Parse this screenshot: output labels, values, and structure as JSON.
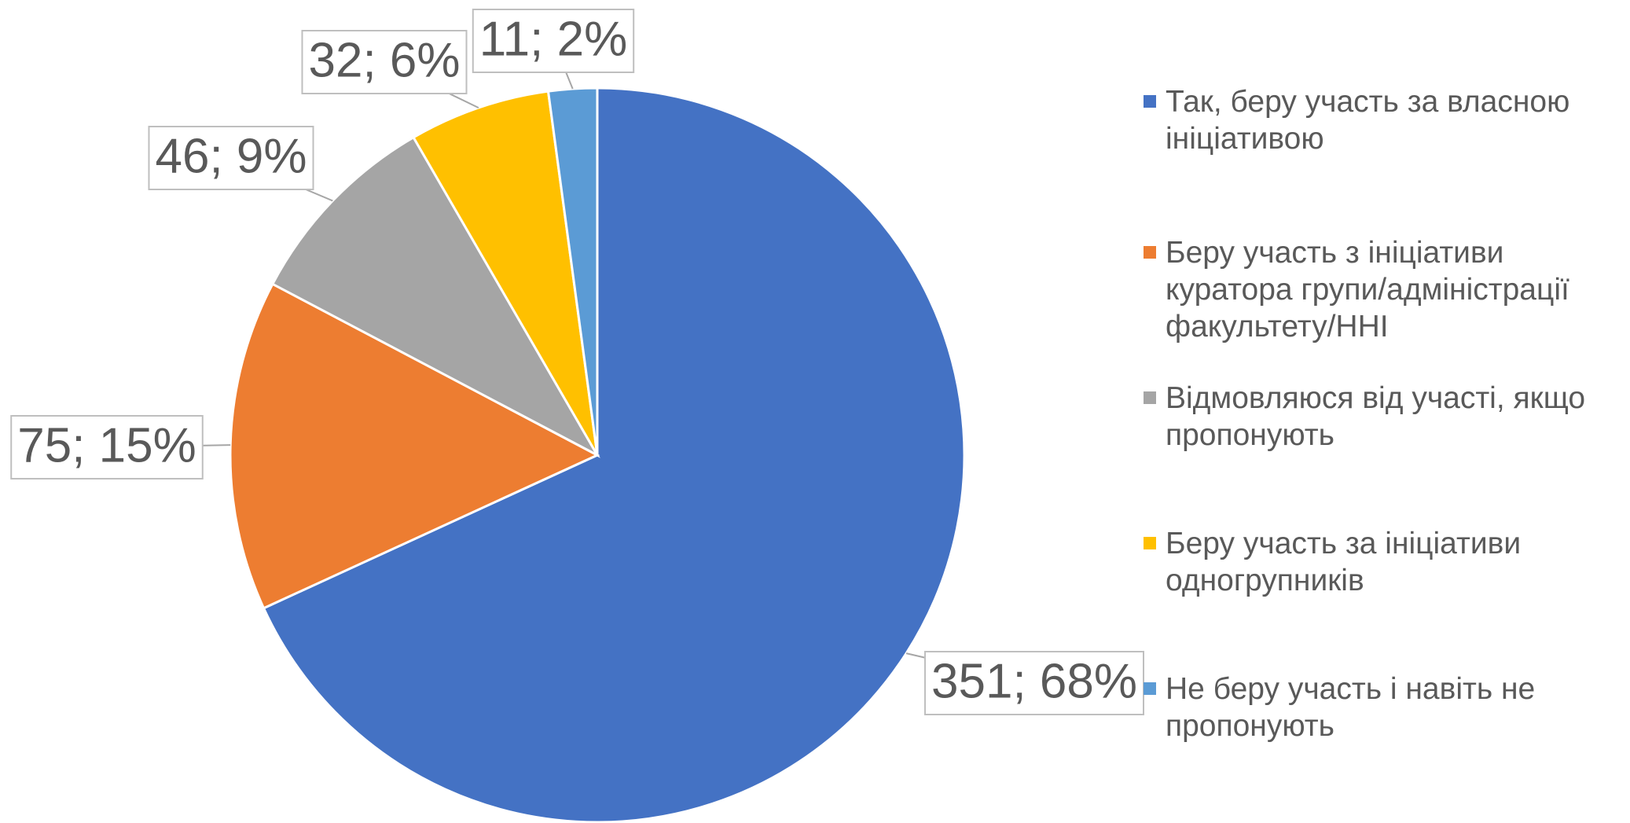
{
  "chart_data": {
    "type": "pie",
    "categories": [
      "Так, беру участь за власною ініціативою",
      "Беру участь з ініціативи куратора групи/адміністрації факультету/ННІ",
      "Відмовляюся від участі, якщо пропонують",
      "Беру участь за ініціативи одногрупників",
      "Не беру участь і навіть не пропонують"
    ],
    "values": [
      351,
      75,
      46,
      32,
      11
    ],
    "value_labels": [
      "351; 68%",
      "75; 15%",
      "46; 9%",
      "32; 6%",
      "11; 2%"
    ],
    "colors": [
      "#4472c4",
      "#ed7d31",
      "#a5a5a5",
      "#ffc000",
      "#5b9bd5"
    ],
    "legend": "right"
  }
}
